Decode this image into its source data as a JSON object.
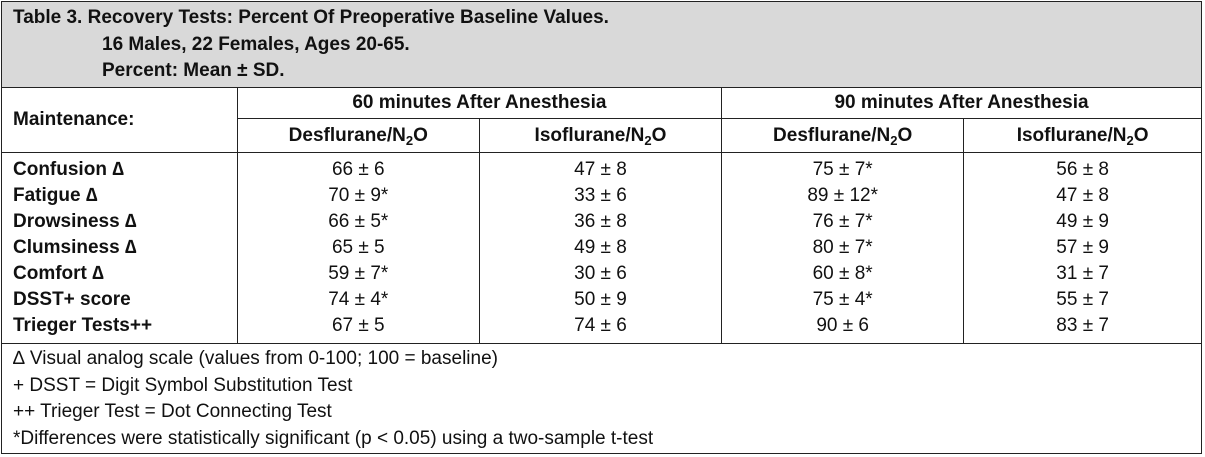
{
  "title": {
    "line1": "Table 3. Recovery Tests: Percent Of Preoperative Baseline Values.",
    "line2": "16 Males, 22 Females, Ages 20-65.",
    "line3": "Percent: Mean ± SD."
  },
  "header": {
    "row_label": "Maintenance:",
    "groups": [
      "60 minutes After Anesthesia",
      "90 minutes After Anesthesia"
    ],
    "agents": [
      {
        "base": "Desflurane/N",
        "sub": "2",
        "tail": "O"
      },
      {
        "base": "Isoflurane/N",
        "sub": "2",
        "tail": "O"
      },
      {
        "base": "Desflurane/N",
        "sub": "2",
        "tail": "O"
      },
      {
        "base": "Isoflurane/N",
        "sub": "2",
        "tail": "O"
      }
    ]
  },
  "rows": [
    {
      "label": "Confusion ∆",
      "values": [
        "66 ± 6",
        "47 ± 8",
        "75 ± 7*",
        "56 ± 8"
      ]
    },
    {
      "label": "Fatigue ∆",
      "values": [
        "70 ± 9*",
        "33 ± 6",
        "89 ± 12*",
        "47 ± 8"
      ]
    },
    {
      "label": "Drowsiness ∆",
      "values": [
        "66 ± 5*",
        "36 ± 8",
        "76 ± 7*",
        "49 ± 9"
      ]
    },
    {
      "label": "Clumsiness ∆",
      "values": [
        "65 ± 5",
        "49 ± 8",
        "80 ± 7*",
        "57 ± 9"
      ]
    },
    {
      "label": "Comfort ∆",
      "values": [
        "59 ± 7*",
        "30 ± 6",
        "60 ± 8*",
        "31 ± 7"
      ]
    },
    {
      "label": "DSST+ score",
      "values": [
        "74 ± 4*",
        "50 ± 9",
        "75 ± 4*",
        "55 ± 7"
      ]
    },
    {
      "label": "Trieger Tests++",
      "values": [
        "67 ± 5",
        "74 ± 6",
        "90 ± 6",
        "83 ± 7"
      ]
    }
  ],
  "notes": [
    "∆ Visual analog scale (values from 0-100; 100 = baseline)",
    "+ DSST = Digit Symbol Substitution Test",
    "++ Trieger Test = Dot Connecting Test",
    "*Differences were statistically significant (p < 0.05) using a two-sample t-test"
  ]
}
